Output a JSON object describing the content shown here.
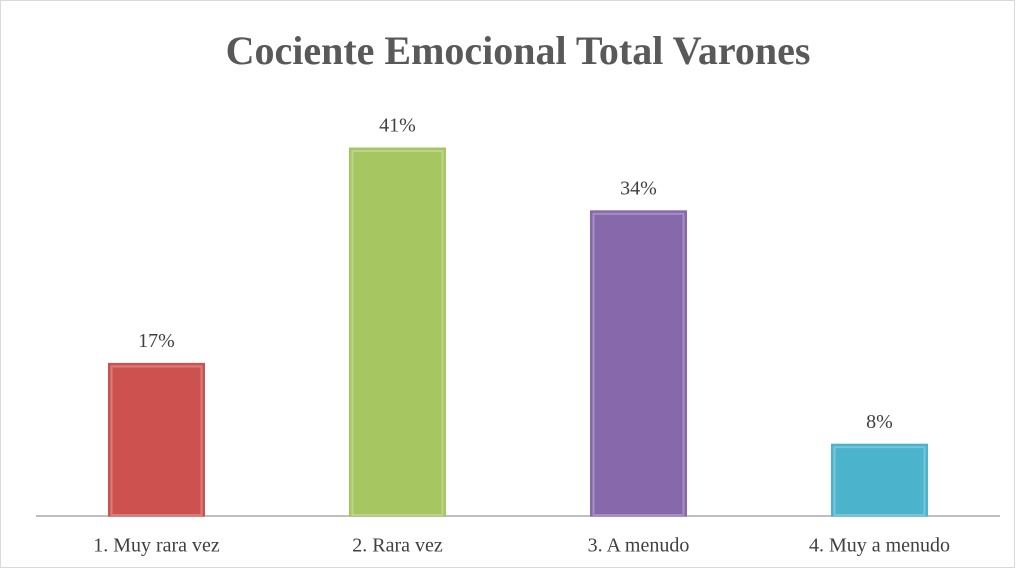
{
  "chart_data": {
    "type": "bar",
    "title": "Cociente Emocional Total Varones",
    "categories": [
      "1. Muy rara vez",
      "2. Rara vez",
      "3. A menudo",
      "4. Muy a menudo"
    ],
    "values": [
      17,
      41,
      34,
      8
    ],
    "value_labels": [
      "17%",
      "41%",
      "34%",
      "8%"
    ],
    "colors": [
      "#cd524f",
      "#a6c662",
      "#8769ab",
      "#4bb3cb"
    ]
  }
}
